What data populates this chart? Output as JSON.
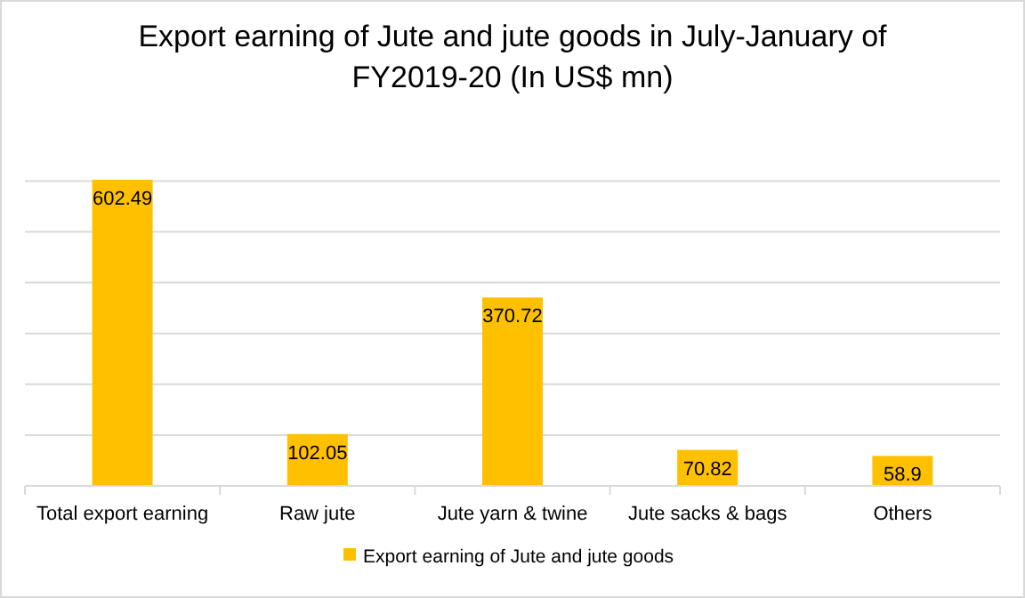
{
  "chart_data": {
    "type": "bar",
    "title": "Export earning of Jute and jute goods in July-January of FY2019-20 (In US$ mn)",
    "categories": [
      "Total export earning",
      "Raw jute",
      "Jute yarn & twine",
      "Jute sacks & bags",
      "Others"
    ],
    "series": [
      {
        "name": "Export earning of Jute and jute goods",
        "color": "#ffc000",
        "values": [
          602.49,
          102.05,
          370.72,
          70.82,
          58.9
        ]
      }
    ],
    "yticks": [
      {
        "value": 0,
        "label": null
      },
      {
        "value": 100,
        "label": null
      },
      {
        "value": 200,
        "label": null
      },
      {
        "value": 300,
        "label": null
      },
      {
        "value": 400,
        "label": null
      },
      {
        "value": 500,
        "label": null
      },
      {
        "value": 600,
        "label": null
      }
    ],
    "tick_labels": "x",
    "grid": "y",
    "legend": "bottom",
    "data_labels": true
  }
}
